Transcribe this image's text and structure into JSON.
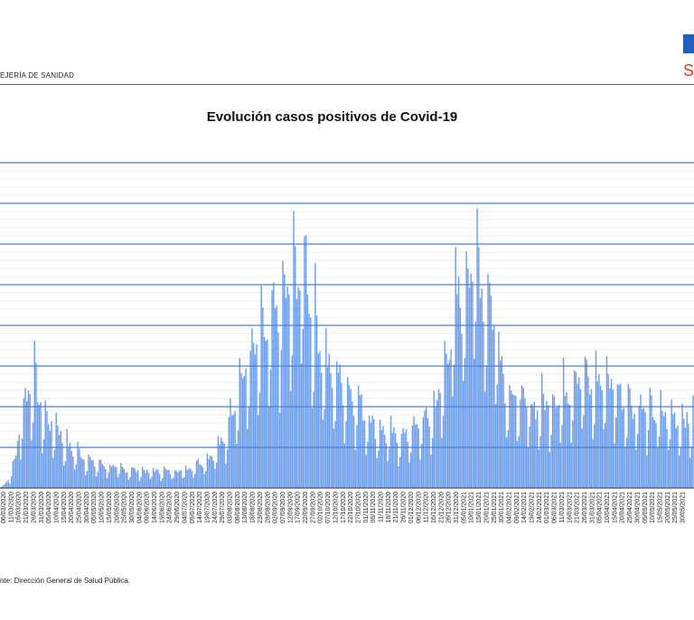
{
  "header": {
    "department": "EJERÍA DE SANIDAD",
    "logo_partial": "S",
    "colors": {
      "accent_line": "#c0392b",
      "logo_blue": "#1f5fbf",
      "logo_red": "#d93a2b"
    }
  },
  "footer": {
    "source": "nte: Dirección General de Salud Pública."
  },
  "chart_data": {
    "type": "bar",
    "title": "Evolución casos positivos de Covid-19",
    "xlabel": "",
    "ylabel": "",
    "grid": true,
    "legend": "none",
    "series_color": "#6d9eeb",
    "gridline_color": "#4a7fd4",
    "ylim": [
      0,
      8
    ],
    "gridlines": [
      1,
      2,
      3,
      4,
      5,
      6,
      7,
      8
    ],
    "start_date": "2020-03-01",
    "tick_labels": [
      "06/03/2020",
      "11/03/2020",
      "16/03/2020",
      "21/03/2020",
      "26/03/2020",
      "31/03/2020",
      "05/04/2020",
      "10/04/2020",
      "15/04/2020",
      "20/04/2020",
      "25/04/2020",
      "30/04/2020",
      "05/05/2020",
      "10/05/2020",
      "15/05/2020",
      "20/05/2020",
      "25/05/2020",
      "30/05/2020",
      "04/06/2020",
      "09/06/2020",
      "14/06/2020",
      "19/06/2020",
      "24/06/2020",
      "29/06/2020",
      "04/07/2020",
      "09/07/2020",
      "14/07/2020",
      "19/07/2020",
      "24/07/2020",
      "29/07/2020",
      "03/08/2020",
      "08/08/2020",
      "13/08/2020",
      "18/08/2020",
      "23/08/2020",
      "28/08/2020",
      "02/09/2020",
      "07/09/2020",
      "12/09/2020",
      "17/09/2020",
      "22/09/2020",
      "27/09/2020",
      "02/10/2020",
      "07/10/2020",
      "12/10/2020",
      "17/10/2020",
      "22/10/2020",
      "27/10/2020",
      "01/11/2020",
      "06/11/2020",
      "11/11/2020",
      "16/11/2020",
      "21/11/2020",
      "26/11/2020",
      "01/12/2020",
      "06/12/2020",
      "11/12/2020",
      "16/12/2020",
      "21/12/2020",
      "26/12/2020",
      "31/12/2020",
      "05/01/2021",
      "10/01/2021",
      "15/01/2021",
      "20/01/2021",
      "25/01/2021",
      "30/01/2021",
      "04/02/2021",
      "09/02/2021",
      "14/02/2021",
      "19/02/2021",
      "24/02/2021",
      "01/03/2021",
      "06/03/2021",
      "11/03/2021",
      "16/03/2021",
      "21/03/2021",
      "26/03/2021",
      "31/03/2021",
      "05/04/2021",
      "10/04/2021",
      "15/04/2021",
      "20/04/2021",
      "25/04/2021",
      "30/04/2021",
      "05/05/2021",
      "10/05/2021",
      "15/05/2021",
      "20/05/2021",
      "25/05/2021",
      "30/05/2021"
    ],
    "envelope": [
      [
        0,
        0
      ],
      [
        6,
        0.3
      ],
      [
        10,
        1.0
      ],
      [
        13,
        2.0
      ],
      [
        17,
        2.8
      ],
      [
        21,
        3.4
      ],
      [
        25,
        2.6
      ],
      [
        30,
        2.0
      ],
      [
        37,
        1.8
      ],
      [
        44,
        1.2
      ],
      [
        52,
        1.0
      ],
      [
        60,
        0.75
      ],
      [
        70,
        0.65
      ],
      [
        80,
        0.55
      ],
      [
        95,
        0.5
      ],
      [
        110,
        0.5
      ],
      [
        120,
        0.55
      ],
      [
        135,
        0.9
      ],
      [
        145,
        1.4
      ],
      [
        152,
        2.8
      ],
      [
        158,
        3.4
      ],
      [
        166,
        4.2
      ],
      [
        175,
        4.7
      ],
      [
        183,
        5.5
      ],
      [
        191,
        6.2
      ],
      [
        197,
        6.9
      ],
      [
        202,
        5.2
      ],
      [
        212,
        3.5
      ],
      [
        220,
        3.2
      ],
      [
        230,
        2.7
      ],
      [
        240,
        2.0
      ],
      [
        250,
        1.6
      ],
      [
        260,
        1.5
      ],
      [
        270,
        1.8
      ],
      [
        280,
        2.2
      ],
      [
        287,
        3.2
      ],
      [
        293,
        5.0
      ],
      [
        300,
        5.9
      ],
      [
        306,
        7.1
      ],
      [
        312,
        6.2
      ],
      [
        320,
        5.2
      ],
      [
        328,
        3.0
      ],
      [
        335,
        2.6
      ],
      [
        345,
        2.4
      ],
      [
        358,
        2.6
      ],
      [
        367,
        2.9
      ],
      [
        375,
        3.5
      ],
      [
        382,
        3.0
      ],
      [
        392,
        3.3
      ],
      [
        402,
        2.8
      ],
      [
        412,
        2.4
      ],
      [
        425,
        2.2
      ],
      [
        450,
        2.0
      ]
    ],
    "annotations": []
  }
}
